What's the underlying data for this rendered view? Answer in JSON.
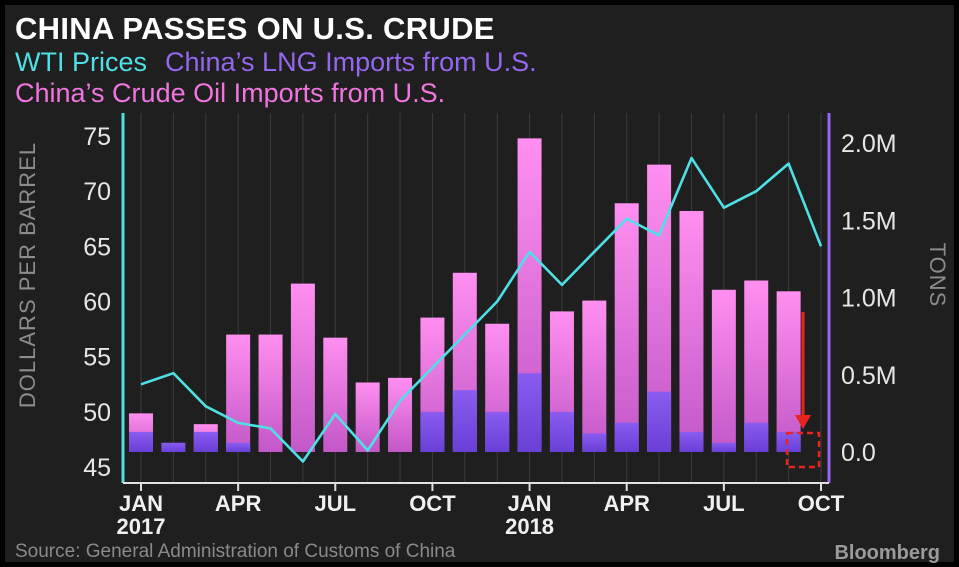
{
  "title": "CHINA PASSES ON U.S. CRUDE",
  "legend": {
    "wti": "WTI Prices",
    "lng": "China’s LNG Imports from U.S.",
    "crude": "China’s Crude Oil Imports from U.S."
  },
  "source": "Source: General Administration of Customs of China",
  "brand": "Bloomberg",
  "colors": {
    "background": "#1f1f1f",
    "wti": "#4fe0e6",
    "lng": "#7d50e6",
    "crude_top": "#ff8ff0",
    "crude_bottom": "#c257c7",
    "right_axis": "#9566ee",
    "left_axis": "#4fe0e6",
    "annotation": "#e8241e"
  },
  "chart_data": {
    "type": "bar",
    "categories": [
      "Jan 2017",
      "Feb 2017",
      "Mar 2017",
      "Apr 2017",
      "May 2017",
      "Jun 2017",
      "Jul 2017",
      "Aug 2017",
      "Sep 2017",
      "Oct 2017",
      "Nov 2017",
      "Dec 2017",
      "Jan 2018",
      "Feb 2018",
      "Mar 2018",
      "Apr 2018",
      "May 2018",
      "Jun 2018",
      "Jul 2018",
      "Aug 2018",
      "Sep 2018",
      "Oct 2018"
    ],
    "x_tick_labels": [
      {
        "index": 0,
        "label": "JAN",
        "year": "2017"
      },
      {
        "index": 3,
        "label": "APR",
        "year": ""
      },
      {
        "index": 6,
        "label": "JUL",
        "year": ""
      },
      {
        "index": 9,
        "label": "OCT",
        "year": ""
      },
      {
        "index": 12,
        "label": "JAN",
        "year": "2018"
      },
      {
        "index": 15,
        "label": "APR",
        "year": ""
      },
      {
        "index": 18,
        "label": "JUL",
        "year": ""
      },
      {
        "index": 21,
        "label": "OCT",
        "year": ""
      }
    ],
    "ylabel_left": "DOLLARS PER BARREL",
    "ylabel_right": "TONS",
    "ylim_left": [
      45,
      76
    ],
    "yticks_left": [
      "45",
      "50",
      "55",
      "60",
      "65",
      "70",
      "75"
    ],
    "ylim_right": [
      0,
      2150000
    ],
    "yticks_right": [
      {
        "value": 0,
        "label": "0.0"
      },
      {
        "value": 500000,
        "label": "0.5M"
      },
      {
        "value": 1000000,
        "label": "1.0M"
      },
      {
        "value": 1500000,
        "label": "1.5M"
      },
      {
        "value": 2000000,
        "label": "2.0M"
      }
    ],
    "series": [
      {
        "name": "China’s Crude Oil Imports from U.S.",
        "type": "bar",
        "axis": "right",
        "values": [
          250000,
          0,
          180000,
          760000,
          760000,
          1090000,
          740000,
          450000,
          480000,
          870000,
          1160000,
          830000,
          2030000,
          910000,
          980000,
          1610000,
          1860000,
          1560000,
          1050000,
          1110000,
          1040000,
          0
        ]
      },
      {
        "name": "China’s LNG Imports from U.S.",
        "type": "bar",
        "axis": "right",
        "values": [
          130000,
          60000,
          130000,
          60000,
          0,
          0,
          0,
          0,
          0,
          260000,
          400000,
          260000,
          510000,
          260000,
          120000,
          190000,
          390000,
          130000,
          60000,
          190000,
          130000,
          0
        ]
      },
      {
        "name": "WTI Prices",
        "type": "line",
        "axis": "left",
        "values": [
          52.5,
          53.5,
          50.5,
          49.0,
          48.5,
          45.5,
          49.8,
          46.5,
          51.0,
          54.0,
          57.0,
          60.0,
          64.5,
          61.5,
          64.5,
          67.5,
          66.0,
          73.0,
          68.5,
          70.0,
          72.5,
          65.0
        ]
      }
    ],
    "annotation": {
      "type": "arrow-to-empty-bar",
      "index": 21
    }
  }
}
